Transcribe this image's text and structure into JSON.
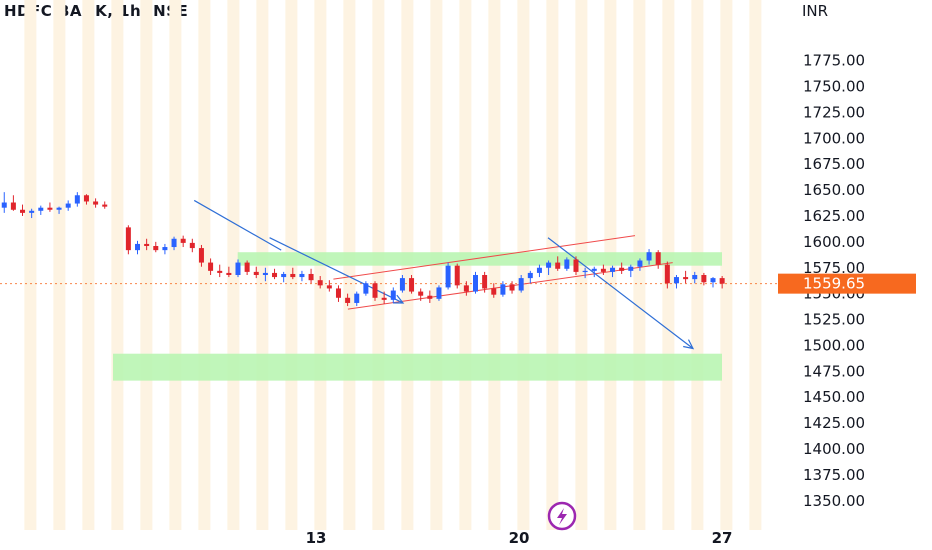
{
  "header": {
    "symbol_title": "HDFC BANK, 1h, NSE",
    "currency": "INR"
  },
  "chart_data": {
    "type": "candlestick",
    "y_ticks": [
      "1775.00",
      "1750.00",
      "1725.00",
      "1700.00",
      "1675.00",
      "1650.00",
      "1625.00",
      "1600.00",
      "1575.00",
      "1550.00",
      "1525.00",
      "1500.00",
      "1475.00",
      "1450.00",
      "1425.00",
      "1400.00",
      "1375.00",
      "1350.00"
    ],
    "ylim": [
      1343,
      1793
    ],
    "x_ticks": [
      {
        "label": "13",
        "x": 11
      },
      {
        "label": "20",
        "x": 18
      },
      {
        "label": "27",
        "x": 25
      }
    ],
    "last_price": {
      "label": "1559.65",
      "value": 1559.65,
      "color": "#f7691f"
    },
    "colors": {
      "up": "#2962ff",
      "down": "#e0252c",
      "zone": "#b9f5b2",
      "session_stripe": "#fdf3e2",
      "trend_line": "#2f6fd6",
      "channel_line": "#f04a4a"
    },
    "zones": [
      {
        "from": 1577,
        "to": 1590,
        "x_start": 8.3,
        "x_end": 25.0
      },
      {
        "from": 1466,
        "to": 1492,
        "x_start": 4.0,
        "x_end": 25.0
      }
    ],
    "candles": [
      [
        1633,
        1648,
        1628,
        1638
      ],
      [
        1638,
        1645,
        1630,
        1631
      ],
      [
        1631,
        1636,
        1625,
        1628
      ],
      [
        1628,
        1632,
        1623,
        1630
      ],
      [
        1630,
        1635,
        1626,
        1633
      ],
      [
        1633,
        1638,
        1629,
        1631
      ],
      [
        1631,
        1634,
        1627,
        1633
      ],
      [
        1633,
        1640,
        1630,
        1637
      ],
      [
        1637,
        1648,
        1634,
        1645
      ],
      [
        1645,
        1646,
        1636,
        1639
      ],
      [
        1639,
        1642,
        1633,
        1636
      ],
      [
        1636,
        1639,
        1632,
        1634
      ],
      [
        1614,
        1616,
        1588,
        1592
      ],
      [
        1592,
        1601,
        1588,
        1598
      ],
      [
        1598,
        1603,
        1592,
        1596
      ],
      [
        1596,
        1600,
        1590,
        1592
      ],
      [
        1592,
        1598,
        1588,
        1595
      ],
      [
        1595,
        1605,
        1592,
        1603
      ],
      [
        1603,
        1606,
        1595,
        1599
      ],
      [
        1599,
        1603,
        1590,
        1594
      ],
      [
        1594,
        1597,
        1576,
        1580
      ],
      [
        1580,
        1584,
        1568,
        1572
      ],
      [
        1572,
        1578,
        1566,
        1570
      ],
      [
        1570,
        1576,
        1566,
        1568
      ],
      [
        1568,
        1583,
        1566,
        1580
      ],
      [
        1580,
        1582,
        1568,
        1571
      ],
      [
        1571,
        1576,
        1565,
        1568
      ],
      [
        1568,
        1575,
        1562,
        1570
      ],
      [
        1570,
        1574,
        1564,
        1566
      ],
      [
        1566,
        1571,
        1561,
        1569
      ],
      [
        1569,
        1575,
        1564,
        1566
      ],
      [
        1566,
        1572,
        1562,
        1569
      ],
      [
        1569,
        1574,
        1560,
        1563
      ],
      [
        1563,
        1567,
        1555,
        1558
      ],
      [
        1558,
        1563,
        1552,
        1555
      ],
      [
        1555,
        1558,
        1542,
        1546
      ],
      [
        1546,
        1550,
        1538,
        1541
      ],
      [
        1541,
        1552,
        1538,
        1550
      ],
      [
        1550,
        1562,
        1548,
        1560
      ],
      [
        1560,
        1562,
        1543,
        1546
      ],
      [
        1546,
        1552,
        1540,
        1544
      ],
      [
        1544,
        1556,
        1541,
        1553
      ],
      [
        1553,
        1568,
        1551,
        1565
      ],
      [
        1565,
        1568,
        1550,
        1552
      ],
      [
        1552,
        1555,
        1543,
        1548
      ],
      [
        1548,
        1553,
        1541,
        1545
      ],
      [
        1545,
        1558,
        1543,
        1556
      ],
      [
        1556,
        1580,
        1554,
        1577
      ],
      [
        1577,
        1579,
        1555,
        1558
      ],
      [
        1558,
        1562,
        1548,
        1552
      ],
      [
        1552,
        1571,
        1550,
        1568
      ],
      [
        1568,
        1571,
        1551,
        1555
      ],
      [
        1555,
        1560,
        1546,
        1549
      ],
      [
        1549,
        1562,
        1547,
        1559
      ],
      [
        1559,
        1562,
        1550,
        1553
      ],
      [
        1553,
        1568,
        1551,
        1565
      ],
      [
        1565,
        1572,
        1560,
        1570
      ],
      [
        1570,
        1578,
        1566,
        1575
      ],
      [
        1575,
        1582,
        1568,
        1580
      ],
      [
        1580,
        1586,
        1572,
        1574
      ],
      [
        1574,
        1585,
        1572,
        1583
      ],
      [
        1583,
        1586,
        1568,
        1571
      ],
      [
        1571,
        1575,
        1565,
        1572
      ],
      [
        1572,
        1576,
        1566,
        1574
      ],
      [
        1574,
        1578,
        1568,
        1571
      ],
      [
        1571,
        1577,
        1566,
        1575
      ],
      [
        1575,
        1580,
        1569,
        1572
      ],
      [
        1572,
        1578,
        1566,
        1576
      ],
      [
        1576,
        1584,
        1572,
        1582
      ],
      [
        1582,
        1593,
        1578,
        1590
      ],
      [
        1590,
        1592,
        1574,
        1578
      ],
      [
        1578,
        1581,
        1555,
        1560
      ],
      [
        1560,
        1568,
        1555,
        1566
      ],
      [
        1566,
        1572,
        1560,
        1564
      ],
      [
        1564,
        1571,
        1560,
        1568
      ],
      [
        1568,
        1570,
        1558,
        1561
      ],
      [
        1561,
        1566,
        1556,
        1565
      ],
      [
        1565,
        1567,
        1555,
        1559.65
      ]
    ],
    "x_start": 0.25,
    "x_step": 0.315,
    "gap_after_index": 11,
    "gap_extra": 0.5,
    "trend_lines": [
      {
        "name": "downtrend-line-1",
        "x1": 6.8,
        "y1": 1640,
        "x2": 9.8,
        "y2": 1592,
        "arrow": false
      },
      {
        "name": "downtrend-line-2",
        "x1": 9.4,
        "y1": 1604,
        "x2": 14.0,
        "y2": 1541,
        "arrow": true
      },
      {
        "name": "projection-line",
        "x1": 19.0,
        "y1": 1604,
        "x2": 24.0,
        "y2": 1497,
        "arrow": true
      }
    ],
    "channel_lines": [
      {
        "name": "channel-upper",
        "x1": 11.6,
        "y1": 1564,
        "x2": 22.0,
        "y2": 1606
      },
      {
        "name": "channel-lower",
        "x1": 12.1,
        "y1": 1535,
        "x2": 23.3,
        "y2": 1580
      }
    ]
  },
  "footer_badge": {
    "icon": "lightning-icon",
    "color": "#9c27b0"
  }
}
